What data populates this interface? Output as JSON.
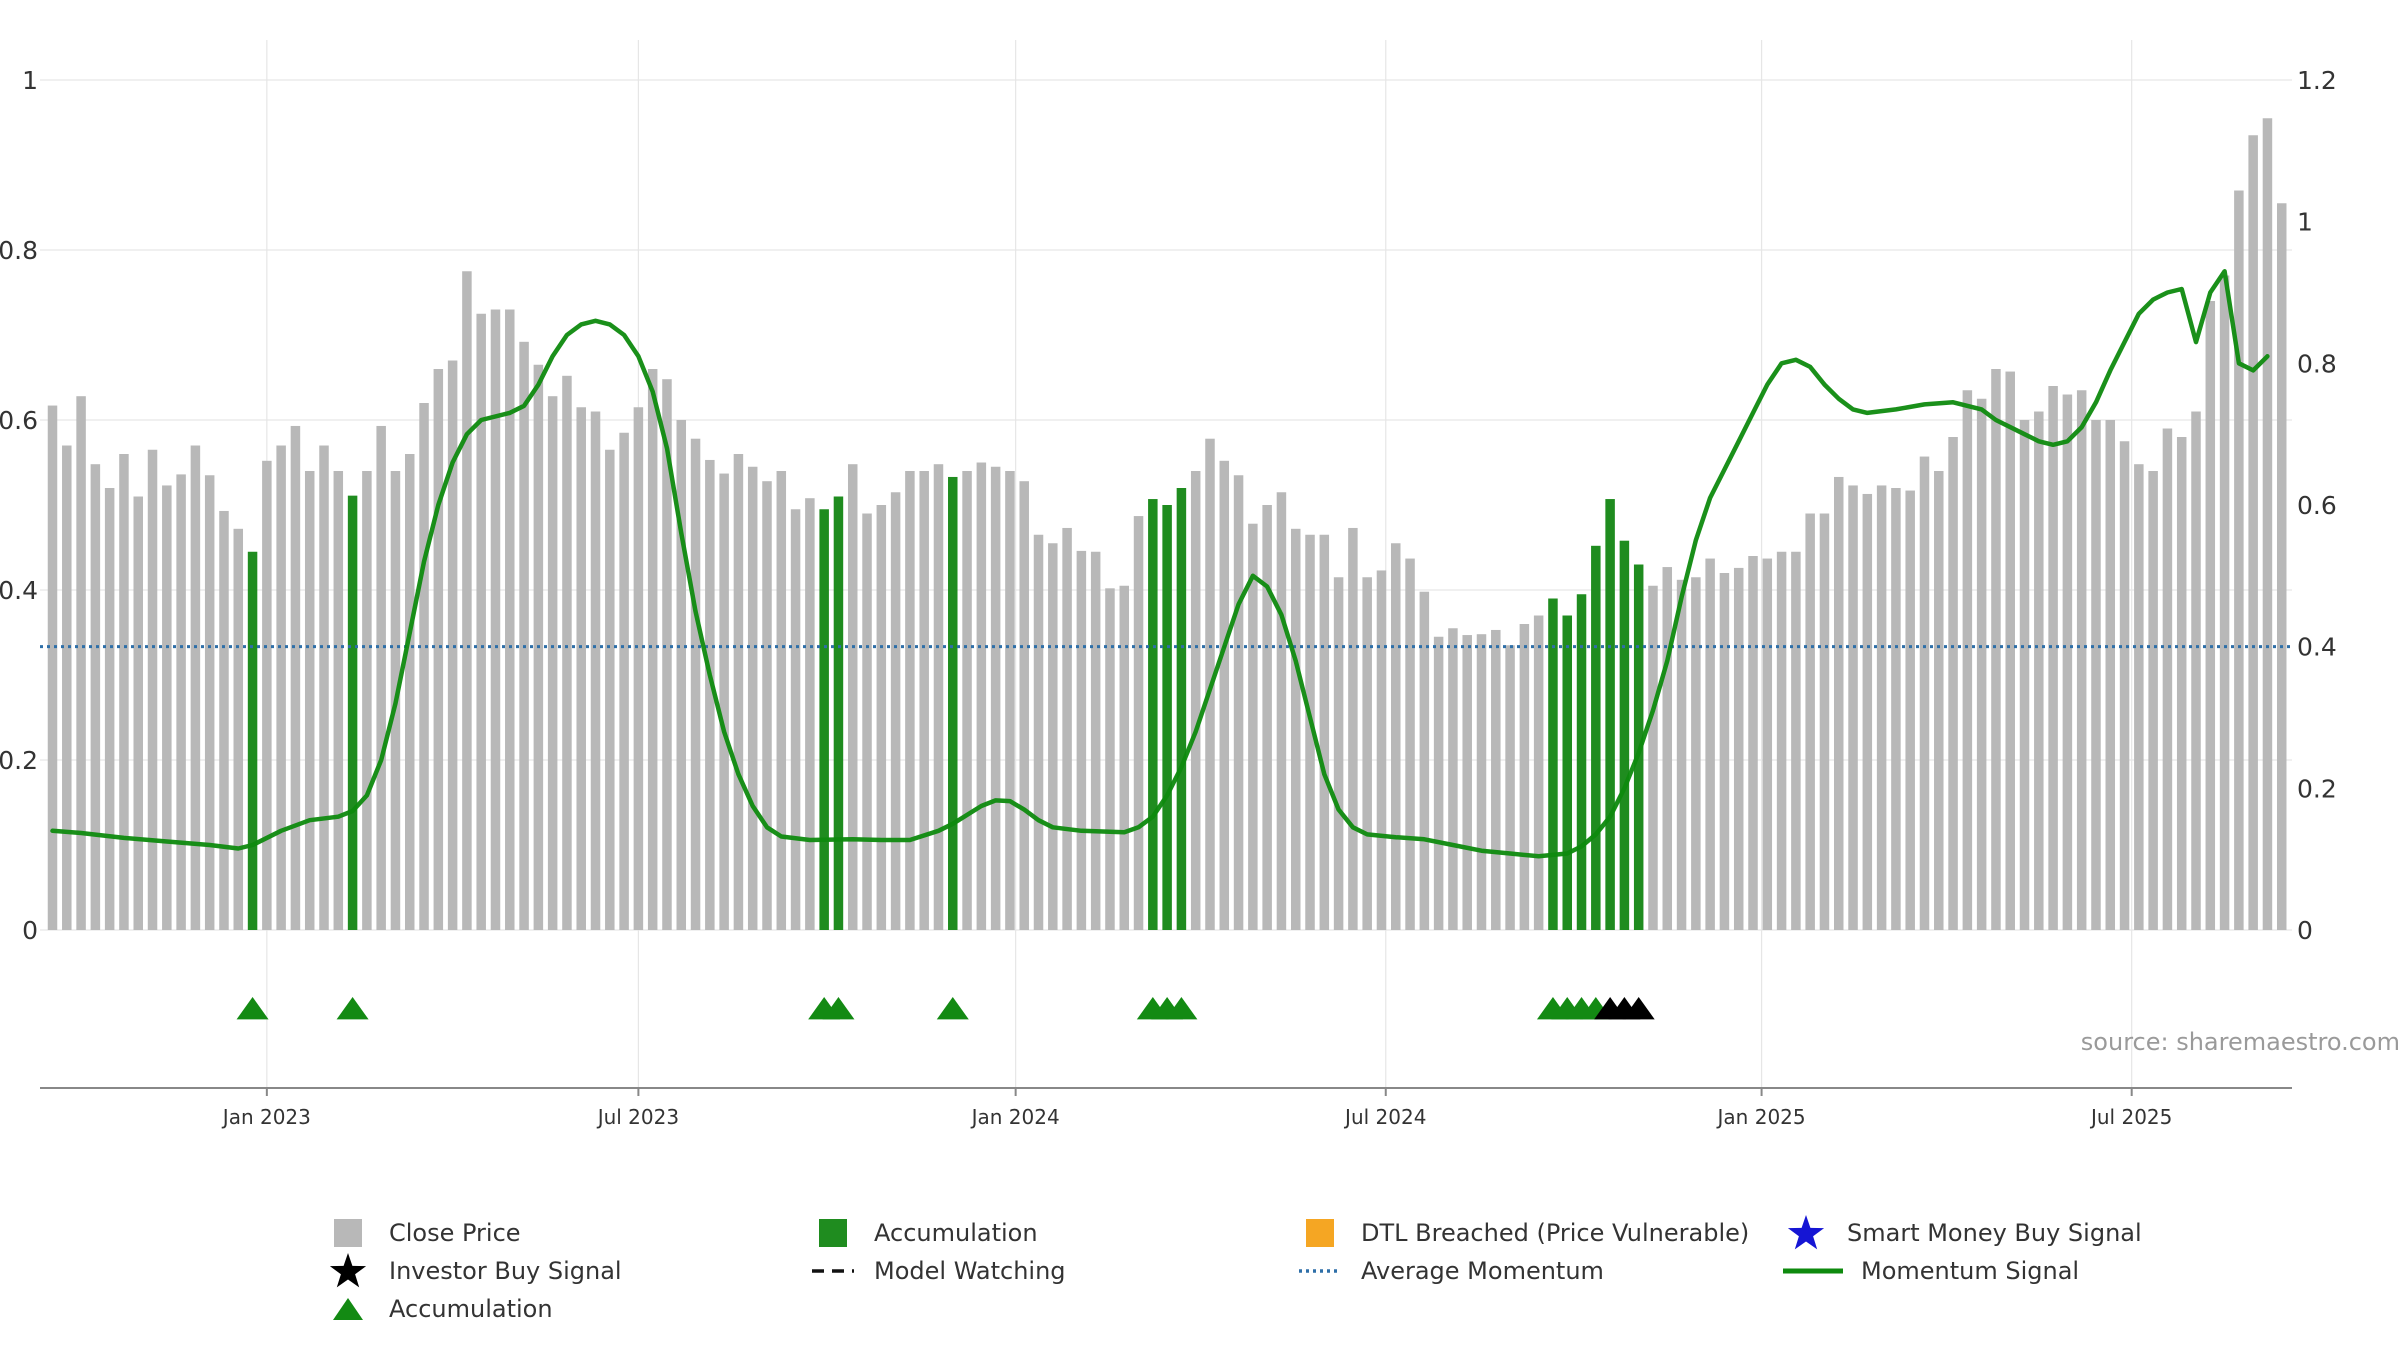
{
  "chart_data": {
    "type": "bar",
    "source": "source: sharemaestro.com",
    "left_axis": {
      "ticks": [
        "0",
        "0.2",
        "0.4",
        "0.6",
        "0.8",
        "1"
      ],
      "ylim": [
        0,
        1
      ]
    },
    "right_axis": {
      "ticks": [
        "0",
        "0.2",
        "0.4",
        "0.6",
        "0.8",
        "1",
        "1.2"
      ],
      "ylim": [
        0,
        1.2
      ]
    },
    "x_ticks": [
      {
        "label": "Jan 2023",
        "week": 15
      },
      {
        "label": "Jul 2023",
        "week": 41
      },
      {
        "label": "Jan 2024",
        "week": 67.4
      },
      {
        "label": "Jul 2024",
        "week": 93.3
      },
      {
        "label": "Jan 2025",
        "week": 119.6
      },
      {
        "label": "Jul 2025",
        "week": 145.5
      }
    ],
    "close_price": [
      0.617,
      0.57,
      0.628,
      0.548,
      0.52,
      0.56,
      0.51,
      0.565,
      0.523,
      0.536,
      0.57,
      0.535,
      0.493,
      0.472,
      0.445,
      0.552,
      0.57,
      0.593,
      0.54,
      0.57,
      0.54,
      0.511,
      0.54,
      0.593,
      0.54,
      0.56,
      0.62,
      0.66,
      0.67,
      0.775,
      0.725,
      0.73,
      0.73,
      0.692,
      0.665,
      0.628,
      0.652,
      0.615,
      0.61,
      0.565,
      0.585,
      0.615,
      0.66,
      0.648,
      0.6,
      0.578,
      0.553,
      0.537,
      0.56,
      0.545,
      0.528,
      0.54,
      0.495,
      0.508,
      0.495,
      0.51,
      0.548,
      0.49,
      0.5,
      0.515,
      0.54,
      0.54,
      0.548,
      0.533,
      0.54,
      0.55,
      0.545,
      0.54,
      0.528,
      0.465,
      0.455,
      0.473,
      0.446,
      0.445,
      0.402,
      0.405,
      0.487,
      0.507,
      0.5,
      0.52,
      0.54,
      0.578,
      0.552,
      0.535,
      0.478,
      0.5,
      0.515,
      0.472,
      0.465,
      0.465,
      0.415,
      0.473,
      0.415,
      0.423,
      0.455,
      0.437,
      0.398,
      0.345,
      0.355,
      0.347,
      0.348,
      0.353,
      0.335,
      0.36,
      0.37,
      0.39,
      0.37,
      0.395,
      0.452,
      0.507,
      0.458,
      0.43,
      0.405,
      0.427,
      0.412,
      0.415,
      0.437,
      0.42,
      0.426,
      0.44,
      0.437,
      0.445,
      0.445,
      0.49,
      0.49,
      0.533,
      0.523,
      0.513,
      0.523,
      0.52,
      0.517,
      0.557,
      0.54,
      0.58,
      0.635,
      0.625,
      0.66,
      0.657,
      0.6,
      0.61,
      0.64,
      0.63,
      0.635,
      0.6,
      0.6,
      0.575,
      0.548,
      0.54,
      0.59,
      0.58,
      0.61,
      0.74,
      0.77,
      0.87,
      0.935,
      0.955,
      0.855
    ],
    "accumulation_bars": [
      14,
      21,
      54,
      55,
      63,
      77,
      78,
      79,
      105,
      106,
      107,
      108,
      109,
      110,
      111
    ],
    "accumulation_markers": [
      14,
      21,
      54,
      55,
      63,
      77,
      78,
      79,
      105,
      106,
      107,
      108
    ],
    "investor_buy_signals": [
      109,
      110,
      111
    ],
    "average_momentum": 0.4,
    "momentum_signal": [
      [
        0,
        0.14
      ],
      [
        2,
        0.137
      ],
      [
        5,
        0.13
      ],
      [
        8,
        0.125
      ],
      [
        11,
        0.12
      ],
      [
        13,
        0.115
      ],
      [
        14,
        0.12
      ],
      [
        16,
        0.14
      ],
      [
        18,
        0.155
      ],
      [
        20,
        0.16
      ],
      [
        21,
        0.168
      ],
      [
        22,
        0.19
      ],
      [
        23,
        0.24
      ],
      [
        24,
        0.32
      ],
      [
        25,
        0.42
      ],
      [
        26,
        0.52
      ],
      [
        27,
        0.6
      ],
      [
        28,
        0.66
      ],
      [
        29,
        0.7
      ],
      [
        30,
        0.72
      ],
      [
        32,
        0.73
      ],
      [
        33,
        0.74
      ],
      [
        34,
        0.77
      ],
      [
        35,
        0.81
      ],
      [
        36,
        0.84
      ],
      [
        37,
        0.855
      ],
      [
        38,
        0.86
      ],
      [
        39,
        0.855
      ],
      [
        40,
        0.84
      ],
      [
        41,
        0.81
      ],
      [
        42,
        0.76
      ],
      [
        43,
        0.68
      ],
      [
        44,
        0.56
      ],
      [
        45,
        0.45
      ],
      [
        46,
        0.36
      ],
      [
        47,
        0.28
      ],
      [
        48,
        0.22
      ],
      [
        49,
        0.175
      ],
      [
        50,
        0.145
      ],
      [
        51,
        0.132
      ],
      [
        53,
        0.127
      ],
      [
        56,
        0.128
      ],
      [
        58,
        0.127
      ],
      [
        60,
        0.127
      ],
      [
        62,
        0.14
      ],
      [
        63,
        0.15
      ],
      [
        65,
        0.175
      ],
      [
        66,
        0.183
      ],
      [
        67,
        0.182
      ],
      [
        68,
        0.17
      ],
      [
        69,
        0.155
      ],
      [
        70,
        0.145
      ],
      [
        72,
        0.14
      ],
      [
        75,
        0.138
      ],
      [
        76,
        0.145
      ],
      [
        77,
        0.16
      ],
      [
        78,
        0.19
      ],
      [
        79,
        0.23
      ],
      [
        80,
        0.28
      ],
      [
        81,
        0.34
      ],
      [
        82,
        0.4
      ],
      [
        83,
        0.46
      ],
      [
        84,
        0.5
      ],
      [
        85,
        0.485
      ],
      [
        86,
        0.445
      ],
      [
        87,
        0.38
      ],
      [
        88,
        0.3
      ],
      [
        89,
        0.22
      ],
      [
        90,
        0.17
      ],
      [
        91,
        0.145
      ],
      [
        92,
        0.135
      ],
      [
        94,
        0.131
      ],
      [
        96,
        0.128
      ],
      [
        98,
        0.12
      ],
      [
        100,
        0.112
      ],
      [
        102,
        0.108
      ],
      [
        104,
        0.104
      ],
      [
        106,
        0.108
      ],
      [
        107,
        0.118
      ],
      [
        108,
        0.135
      ],
      [
        109,
        0.16
      ],
      [
        110,
        0.2
      ],
      [
        111,
        0.25
      ],
      [
        112,
        0.31
      ],
      [
        113,
        0.38
      ],
      [
        114,
        0.47
      ],
      [
        115,
        0.55
      ],
      [
        116,
        0.61
      ],
      [
        117,
        0.65
      ],
      [
        118,
        0.69
      ],
      [
        119,
        0.73
      ],
      [
        120,
        0.77
      ],
      [
        121,
        0.8
      ],
      [
        122,
        0.805
      ],
      [
        123,
        0.795
      ],
      [
        124,
        0.77
      ],
      [
        125,
        0.75
      ],
      [
        126,
        0.735
      ],
      [
        127,
        0.73
      ],
      [
        129,
        0.735
      ],
      [
        131,
        0.742
      ],
      [
        133,
        0.745
      ],
      [
        135,
        0.735
      ],
      [
        136,
        0.72
      ],
      [
        138,
        0.7
      ],
      [
        139,
        0.69
      ],
      [
        140,
        0.685
      ],
      [
        141,
        0.69
      ],
      [
        142,
        0.71
      ],
      [
        143,
        0.745
      ],
      [
        144,
        0.79
      ],
      [
        145,
        0.83
      ],
      [
        146,
        0.87
      ],
      [
        147,
        0.89
      ],
      [
        148,
        0.9
      ],
      [
        149,
        0.905
      ],
      [
        150,
        0.83
      ],
      [
        151,
        0.9
      ],
      [
        152,
        0.93
      ],
      [
        153,
        0.8
      ],
      [
        154,
        0.79
      ],
      [
        155,
        0.81
      ]
    ],
    "colors": {
      "close_price": "#b8b8b8",
      "accumulation": "#1f8c1f",
      "marker": "#138a13",
      "investor_signal": "#000000",
      "smart_money": "#1515d4",
      "dtl": "#f5a623",
      "avg_momentum": "#2e6fa8",
      "momentum": "#0e8a0e",
      "grid": "#e6e6e6",
      "axis": "#888888"
    },
    "legend": [
      {
        "key": "close",
        "label": "Close Price",
        "symbol": "gray-square-icon"
      },
      {
        "key": "accum_sq",
        "label": "Accumulation",
        "symbol": "green-square-icon"
      },
      {
        "key": "dtl",
        "label": "DTL Breached (Price Vulnerable)",
        "symbol": "orange-square-icon"
      },
      {
        "key": "smart",
        "label": "Smart Money Buy Signal",
        "symbol": "blue-star-icon"
      },
      {
        "key": "investor",
        "label": "Investor Buy Signal",
        "symbol": "black-star-icon"
      },
      {
        "key": "watch",
        "label": "Model Watching",
        "symbol": "dashed-line-icon"
      },
      {
        "key": "avgmom",
        "label": "Average Momentum",
        "symbol": "dotted-line-icon"
      },
      {
        "key": "mom",
        "label": "Momentum Signal",
        "symbol": "green-line-icon"
      },
      {
        "key": "accum_tri",
        "label": "Accumulation",
        "symbol": "green-triangle-icon"
      }
    ]
  }
}
